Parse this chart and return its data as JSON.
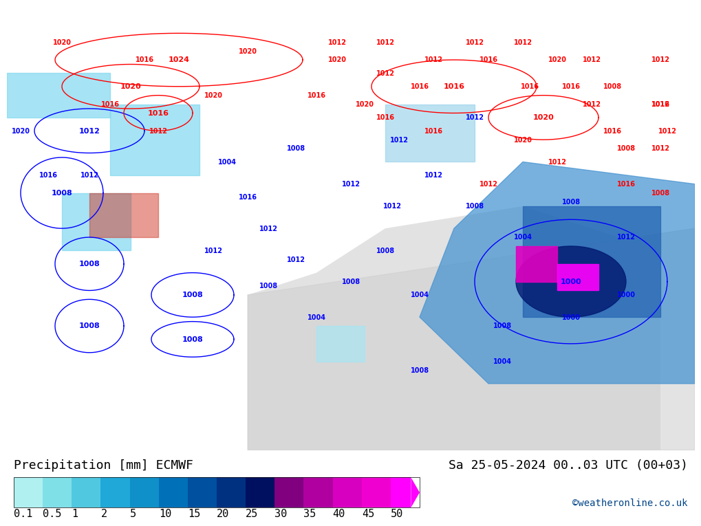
{
  "title_left": "Precipitation [mm] ECMWF",
  "title_right": "Sa 25-05-2024 00..03 UTC (00+03)",
  "credit": "©weatheronline.co.uk",
  "colorbar_values": [
    0.1,
    0.5,
    1,
    2,
    5,
    10,
    15,
    20,
    25,
    30,
    35,
    40,
    45,
    50
  ],
  "colorbar_colors": [
    "#b0f0f0",
    "#80e0e8",
    "#50c8e0",
    "#20a8d8",
    "#1090c8",
    "#0070b8",
    "#0050a0",
    "#003080",
    "#001060",
    "#800080",
    "#b000a0",
    "#d800c0",
    "#f000d0",
    "#ff00ff"
  ],
  "bg_color": "#c8f0a0",
  "map_bg": "#c8f0a0",
  "colorbar_label_fontsize": 11,
  "title_fontsize": 13,
  "credit_fontsize": 10
}
